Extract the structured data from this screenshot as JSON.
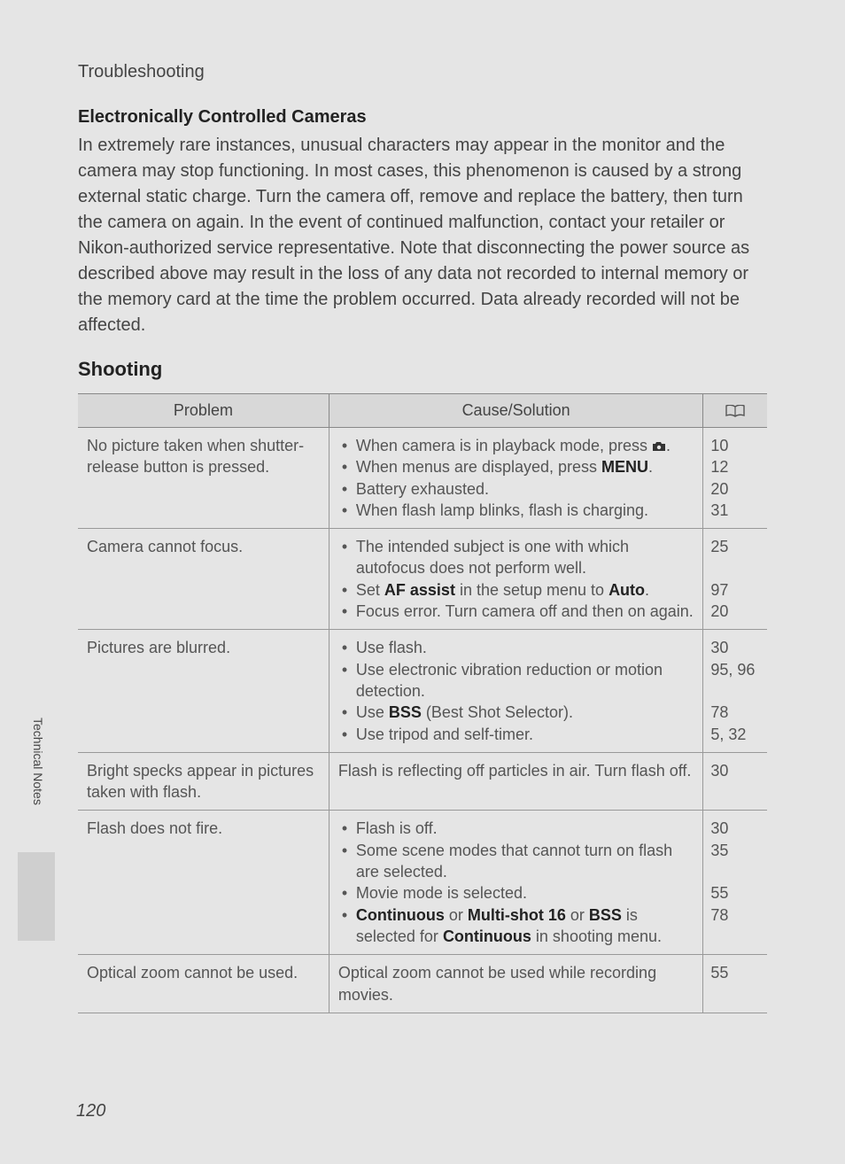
{
  "header": "Troubleshooting",
  "subtitle": "Electronically Controlled Cameras",
  "paragraph": "In extremely rare instances, unusual characters may appear in the monitor and the camera may stop functioning. In most cases, this phenomenon is caused by a strong external static charge. Turn the camera off, remove and replace the battery, then turn the camera on again. In the event of continued malfunction, contact your retailer or Nikon-authorized service representative. Note that disconnecting the power source as described above may result in the loss of any data not recorded to internal memory or the memory card at the time the problem occurred. Data already recorded will not be affected.",
  "section_title": "Shooting",
  "table": {
    "headers": {
      "problem": "Problem",
      "solution": "Cause/Solution"
    },
    "rows": [
      {
        "problem": "No picture taken when shutter-release button is pressed.",
        "solution_items": [
          {
            "pre": "When camera is in playback mode, press ",
            "icon": "camera",
            "post": "."
          },
          {
            "pre": "When menus are displayed, press ",
            "bold": "MENU",
            "post": "."
          },
          {
            "pre": "Battery exhausted."
          },
          {
            "pre": "When flash lamp blinks, flash is charging."
          }
        ],
        "pages": [
          "10",
          "12",
          "20",
          "31"
        ]
      },
      {
        "problem": "Camera cannot focus.",
        "solution_items": [
          {
            "pre": "The intended subject is one with which autofocus does not perform well."
          },
          {
            "pre": "Set ",
            "bold": "AF assist",
            "mid": " in the setup menu to ",
            "bold2": "Auto",
            "post": "."
          },
          {
            "pre": "Focus error. Turn camera off and then on again."
          }
        ],
        "pages": [
          "25",
          "",
          "97",
          "20"
        ]
      },
      {
        "problem": "Pictures are blurred.",
        "solution_items": [
          {
            "pre": "Use flash."
          },
          {
            "pre": "Use electronic vibration reduction or motion detection."
          },
          {
            "pre": "Use ",
            "bold": "BSS",
            "post": " (Best Shot Selector)."
          },
          {
            "pre": "Use tripod and self-timer."
          }
        ],
        "pages": [
          "30",
          "95, 96",
          "",
          "78",
          "5, 32"
        ]
      },
      {
        "problem": "Bright specks appear in pictures taken with flash.",
        "solution_plain": "Flash is reflecting off particles in air. Turn flash off.",
        "pages": [
          "30"
        ]
      },
      {
        "problem": "Flash does not fire.",
        "solution_items": [
          {
            "pre": "Flash is off."
          },
          {
            "pre": "Some scene modes that cannot turn on flash are selected."
          },
          {
            "pre": "Movie mode is selected."
          },
          {
            "pre": "",
            "bold": "Continuous",
            "mid": " or ",
            "bold2": "Multi-shot 16",
            "mid2": " or ",
            "bold3": "BSS",
            "mid3": " is selected for ",
            "bold4": "Continuous",
            "post": " in shooting menu."
          }
        ],
        "pages": [
          "30",
          "35",
          "",
          "55",
          "78"
        ]
      },
      {
        "problem": "Optical zoom cannot be used.",
        "solution_plain": "Optical zoom cannot be used while recording movies.",
        "pages": [
          "55"
        ]
      }
    ]
  },
  "side_label": "Technical Notes",
  "page_number": "120"
}
